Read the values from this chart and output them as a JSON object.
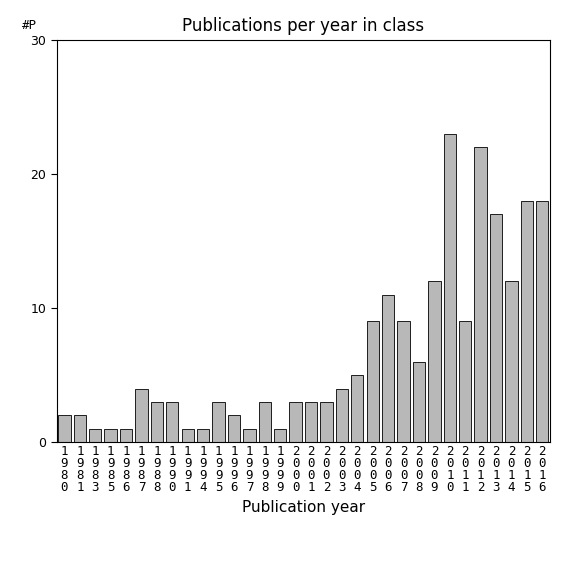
{
  "title": "Publications per year in class",
  "xlabel": "Publication year",
  "ylabel": "#P",
  "years": [
    "1980",
    "1981",
    "1983",
    "1985",
    "1986",
    "1987",
    "1988",
    "1990",
    "1991",
    "1994",
    "1995",
    "1996",
    "1997",
    "1998",
    "1999",
    "2000",
    "2001",
    "2002",
    "2003",
    "2004",
    "2005",
    "2006",
    "2007",
    "2008",
    "2009",
    "2010",
    "2011",
    "2012",
    "2013",
    "2014",
    "2015",
    "2016"
  ],
  "values": [
    2,
    2,
    1,
    1,
    1,
    4,
    3,
    3,
    1,
    1,
    3,
    2,
    1,
    3,
    1,
    3,
    3,
    3,
    4,
    5,
    9,
    11,
    9,
    6,
    12,
    23,
    9,
    22,
    17,
    12,
    18,
    18
  ],
  "bar_color": "#b8b8b8",
  "bar_edgecolor": "#000000",
  "ylim": [
    0,
    30
  ],
  "yticks": [
    0,
    10,
    20,
    30
  ],
  "background_color": "#ffffff",
  "title_fontsize": 12,
  "xlabel_fontsize": 11,
  "tick_fontsize": 9
}
